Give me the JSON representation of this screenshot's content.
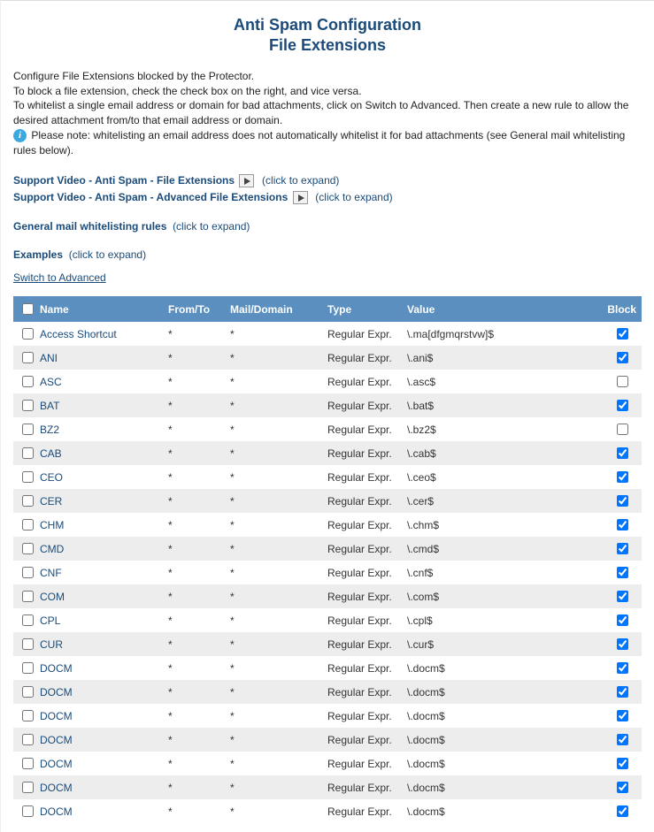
{
  "title_line1": "Anti Spam Configuration",
  "title_line2": "File Extensions",
  "intro": {
    "line1": "Configure File Extensions blocked by the Protector.",
    "line2": "To block a file extension, check the check box on the right, and vice versa.",
    "line3": "To whitelist a single email address or domain for bad attachments, click on Switch to Advanced. Then create a new rule to allow the desired attachment from/to that email address or domain.",
    "note": "Please note: whitelisting an email address does not automatically whitelist it for bad attachments (see General mail whitelisting rules below)."
  },
  "links": {
    "video1": "Support Video - Anti Spam - File Extensions",
    "video2": "Support Video - Anti Spam - Advanced File Extensions",
    "general": "General mail whitelisting rules",
    "examples": "Examples",
    "expand": "(click to expand)",
    "switch": "Switch to Advanced"
  },
  "columns": {
    "name": "Name",
    "fromto": "From/To",
    "mail": "Mail/Domain",
    "type": "Type",
    "value": "Value",
    "block": "Block"
  },
  "rows": [
    {
      "name": "Access Shortcut",
      "fromto": "*",
      "mail": "*",
      "type": "Regular Expr.",
      "value": "\\.ma[dfgmqrstvw]$",
      "block": true
    },
    {
      "name": "ANI",
      "fromto": "*",
      "mail": "*",
      "type": "Regular Expr.",
      "value": "\\.ani$",
      "block": true
    },
    {
      "name": "ASC",
      "fromto": "*",
      "mail": "*",
      "type": "Regular Expr.",
      "value": "\\.asc$",
      "block": false
    },
    {
      "name": "BAT",
      "fromto": "*",
      "mail": "*",
      "type": "Regular Expr.",
      "value": "\\.bat$",
      "block": true
    },
    {
      "name": "BZ2",
      "fromto": "*",
      "mail": "*",
      "type": "Regular Expr.",
      "value": "\\.bz2$",
      "block": false
    },
    {
      "name": "CAB",
      "fromto": "*",
      "mail": "*",
      "type": "Regular Expr.",
      "value": "\\.cab$",
      "block": true
    },
    {
      "name": "CEO",
      "fromto": "*",
      "mail": "*",
      "type": "Regular Expr.",
      "value": "\\.ceo$",
      "block": true
    },
    {
      "name": "CER",
      "fromto": "*",
      "mail": "*",
      "type": "Regular Expr.",
      "value": "\\.cer$",
      "block": true
    },
    {
      "name": "CHM",
      "fromto": "*",
      "mail": "*",
      "type": "Regular Expr.",
      "value": "\\.chm$",
      "block": true
    },
    {
      "name": "CMD",
      "fromto": "*",
      "mail": "*",
      "type": "Regular Expr.",
      "value": "\\.cmd$",
      "block": true
    },
    {
      "name": "CNF",
      "fromto": "*",
      "mail": "*",
      "type": "Regular Expr.",
      "value": "\\.cnf$",
      "block": true
    },
    {
      "name": "COM",
      "fromto": "*",
      "mail": "*",
      "type": "Regular Expr.",
      "value": "\\.com$",
      "block": true
    },
    {
      "name": "CPL",
      "fromto": "*",
      "mail": "*",
      "type": "Regular Expr.",
      "value": "\\.cpl$",
      "block": true
    },
    {
      "name": "CUR",
      "fromto": "*",
      "mail": "*",
      "type": "Regular Expr.",
      "value": "\\.cur$",
      "block": true
    },
    {
      "name": "DOCM",
      "fromto": "*",
      "mail": "*",
      "type": "Regular Expr.",
      "value": "\\.docm$",
      "block": true
    },
    {
      "name": "DOCM",
      "fromto": "*",
      "mail": "*",
      "type": "Regular Expr.",
      "value": "\\.docm$",
      "block": true
    },
    {
      "name": "DOCM",
      "fromto": "*",
      "mail": "*",
      "type": "Regular Expr.",
      "value": "\\.docm$",
      "block": true
    },
    {
      "name": "DOCM",
      "fromto": "*",
      "mail": "*",
      "type": "Regular Expr.",
      "value": "\\.docm$",
      "block": true
    },
    {
      "name": "DOCM",
      "fromto": "*",
      "mail": "*",
      "type": "Regular Expr.",
      "value": "\\.docm$",
      "block": true
    },
    {
      "name": "DOCM",
      "fromto": "*",
      "mail": "*",
      "type": "Regular Expr.",
      "value": "\\.docm$",
      "block": true
    },
    {
      "name": "DOCM",
      "fromto": "*",
      "mail": "*",
      "type": "Regular Expr.",
      "value": "\\.docm$",
      "block": true
    }
  ],
  "colors": {
    "header_bg": "#5a8fbf",
    "link": "#1a4b7a",
    "row_even": "#ededed",
    "row_odd": "#ffffff"
  }
}
